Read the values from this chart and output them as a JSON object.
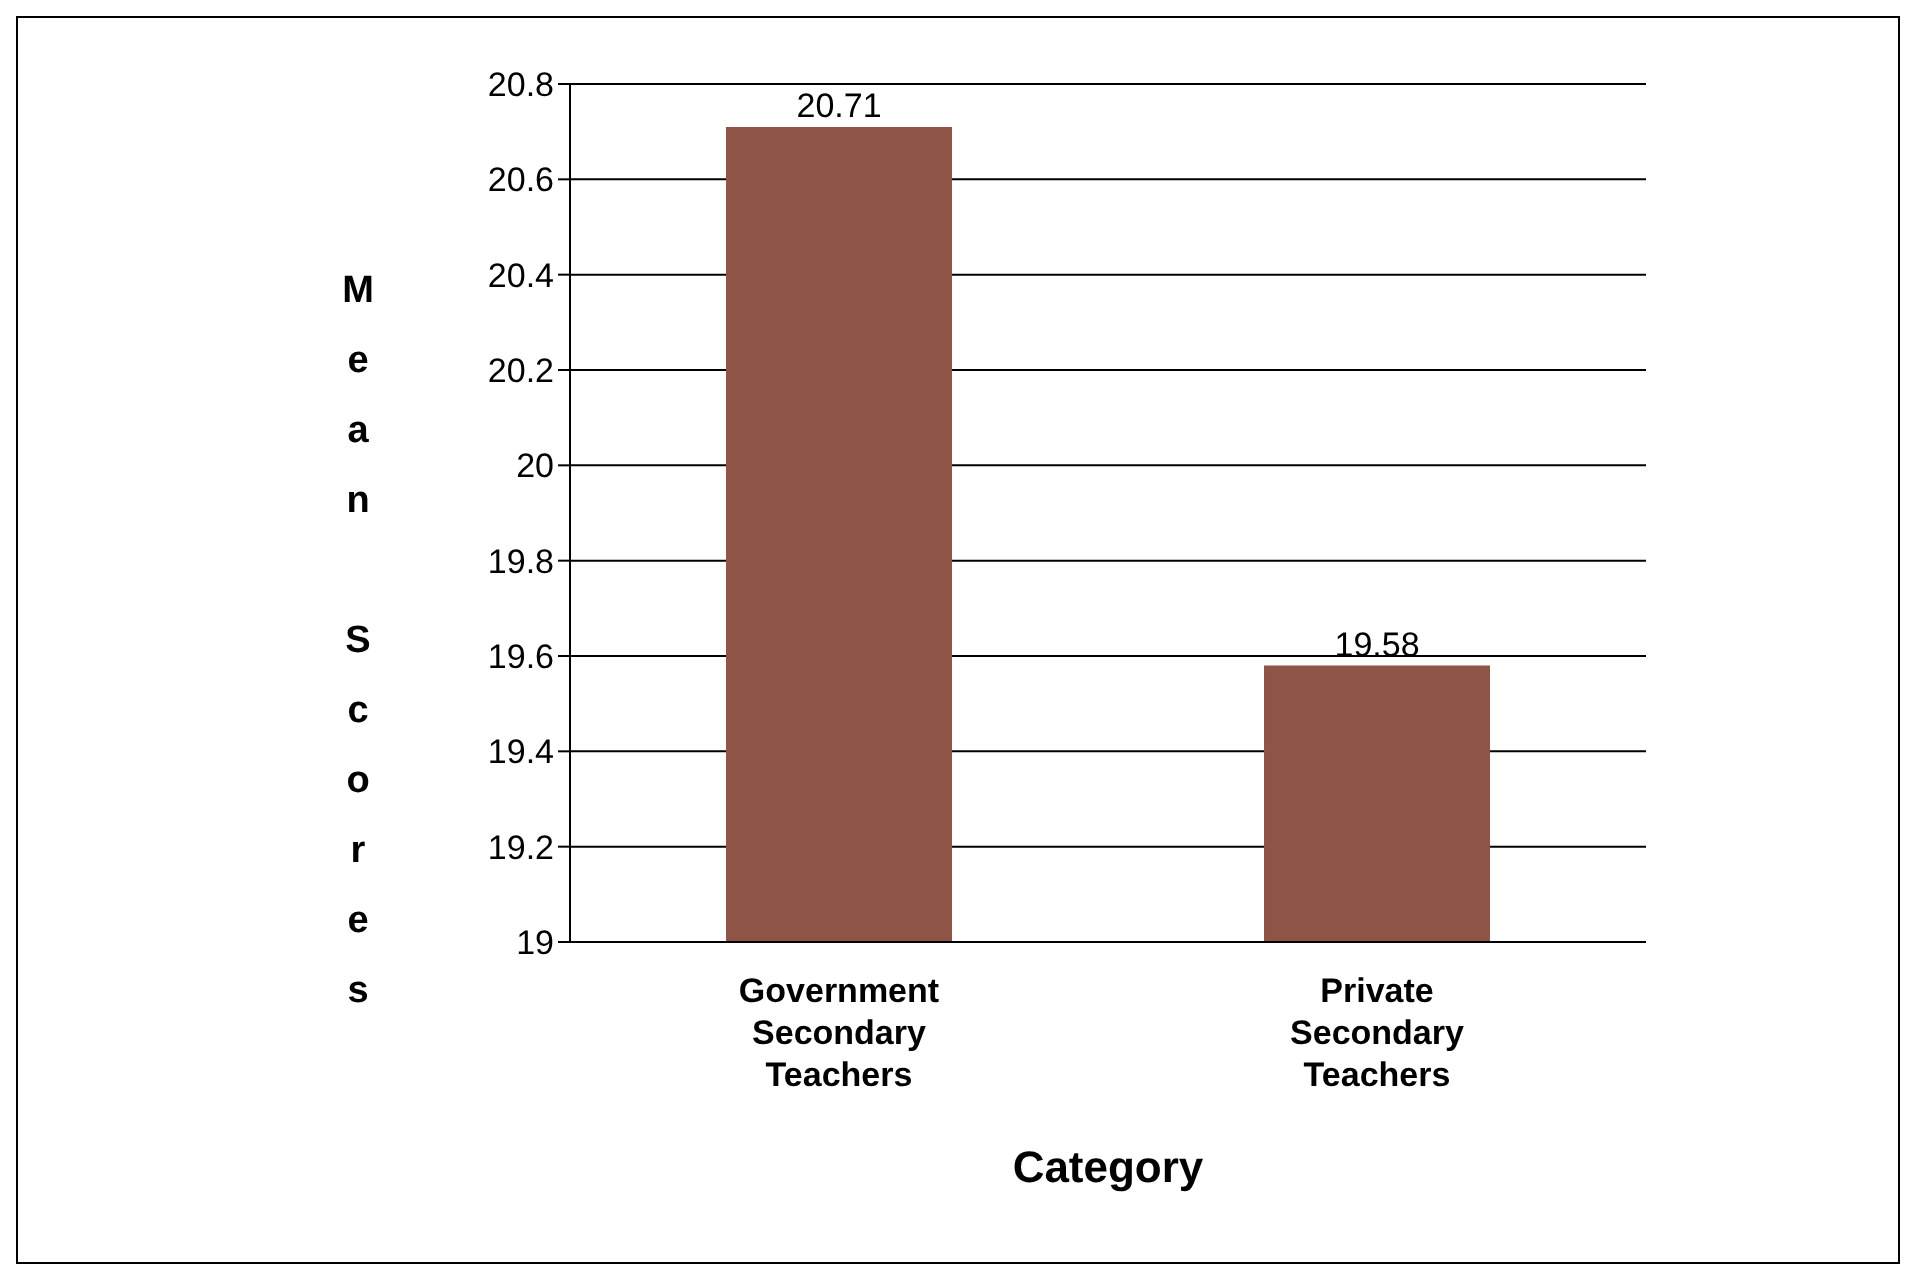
{
  "chart_data": {
    "type": "bar",
    "categories": [
      "Government Secondary Teachers",
      "Private Secondary Teachers"
    ],
    "values": [
      20.71,
      19.58
    ],
    "color": "#8e5445",
    "xlabel": "Category",
    "ylabel": "Mean Scores",
    "ylim": [
      19,
      20.8
    ],
    "yticks": [
      19,
      19.2,
      19.4,
      19.6,
      19.8,
      20,
      20.2,
      20.4,
      20.6,
      20.8
    ],
    "grid": "y",
    "data_labels": true
  }
}
